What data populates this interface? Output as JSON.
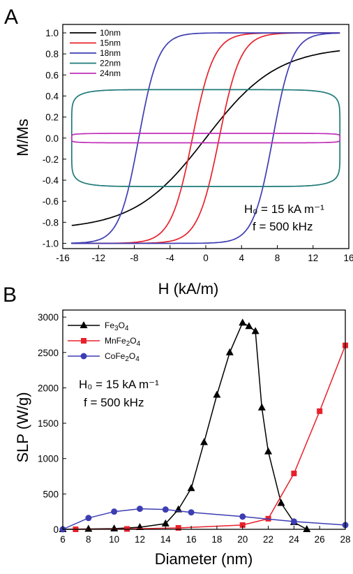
{
  "chart_data": [
    {
      "panel_label": "A",
      "type": "line",
      "xlabel": "H (kA/m)",
      "ylabel": "M/Ms",
      "xlim": [
        -16,
        16
      ],
      "ylim": [
        -1.05,
        1.08
      ],
      "x_ticks": [
        -16,
        -12,
        -8,
        -4,
        0,
        4,
        8,
        12,
        16
      ],
      "y_ticks": [
        -1.0,
        -0.8,
        -0.6,
        -0.4,
        -0.2,
        0.0,
        0.2,
        0.4,
        0.6,
        0.8,
        1.0
      ],
      "x_tick_labels": [
        "-16",
        "-12",
        "-8",
        "-4",
        "0",
        "4",
        "8",
        "12",
        "16"
      ],
      "y_tick_labels": [
        "-1.0",
        "-0.8",
        "-0.6",
        "-0.4",
        "-0.2",
        "0.0",
        "0.2",
        "0.4",
        "0.6",
        "0.8",
        "1.0"
      ],
      "legend_position": "top-left",
      "annotation_lines": [
        "H₀ = 15 kA m⁻¹",
        "f = 500 kHz"
      ],
      "series": [
        {
          "name": "10nm",
          "color": "#000000",
          "kind": "anhysteretic",
          "field_amplitude": 15,
          "coercivity": 0,
          "saturation": 0.87,
          "slope_width": 8
        },
        {
          "name": "15nm",
          "color": "#e8212b",
          "kind": "loop",
          "field_amplitude": 15,
          "coercivity": 1.5,
          "saturation": 1.0,
          "slope_width": 2.4
        },
        {
          "name": "18nm",
          "color": "#3d3db3",
          "kind": "loop",
          "field_amplitude": 15,
          "coercivity": 7.5,
          "saturation": 1.0,
          "slope_width": 2.2
        },
        {
          "name": "22nm",
          "color": "#1e7a78",
          "kind": "rounded-rect",
          "field_amplitude": 15,
          "coercivity": 15,
          "saturation": 0.46,
          "slope_width": 2
        },
        {
          "name": "24nm",
          "color": "#c030b8",
          "kind": "rounded-rect",
          "field_amplitude": 15,
          "coercivity": 15,
          "saturation": 0.045,
          "slope_width": 2
        }
      ]
    },
    {
      "panel_label": "B",
      "type": "line",
      "xlabel": "Diameter (nm)",
      "ylabel": "SLP (W/g)",
      "xlim": [
        6,
        28
      ],
      "ylim": [
        0,
        3100
      ],
      "x_ticks": [
        6,
        8,
        10,
        12,
        14,
        16,
        18,
        20,
        22,
        24,
        26,
        28
      ],
      "y_ticks": [
        0,
        500,
        1000,
        1500,
        2000,
        2500,
        3000
      ],
      "legend_position": "top-left",
      "annotation_lines": [
        "H₀ = 15 kA m⁻¹",
        "f = 500 kHz"
      ],
      "series": [
        {
          "name": "Fe3O4",
          "color": "#000000",
          "marker": "triangle",
          "x": [
            6,
            8,
            10,
            12,
            14,
            15,
            16,
            17,
            18,
            19,
            20,
            20.5,
            21,
            21.5,
            22,
            23,
            24,
            25
          ],
          "y": [
            0,
            5,
            10,
            30,
            80,
            280,
            580,
            1230,
            1900,
            2500,
            2920,
            2870,
            2800,
            1720,
            1100,
            370,
            100,
            0
          ]
        },
        {
          "name": "MnFe2O4",
          "color": "#e8212b",
          "marker": "square",
          "x": [
            7,
            11,
            15,
            20,
            22,
            24,
            26,
            28
          ],
          "y": [
            0,
            5,
            20,
            60,
            150,
            790,
            1670,
            2600
          ]
        },
        {
          "name": "CoFe2O4",
          "color": "#3d3db3",
          "marker": "circle",
          "x": [
            6,
            8,
            10,
            12,
            14,
            16,
            20,
            24,
            28
          ],
          "y": [
            0,
            160,
            250,
            290,
            280,
            240,
            180,
            110,
            60
          ]
        }
      ]
    }
  ]
}
